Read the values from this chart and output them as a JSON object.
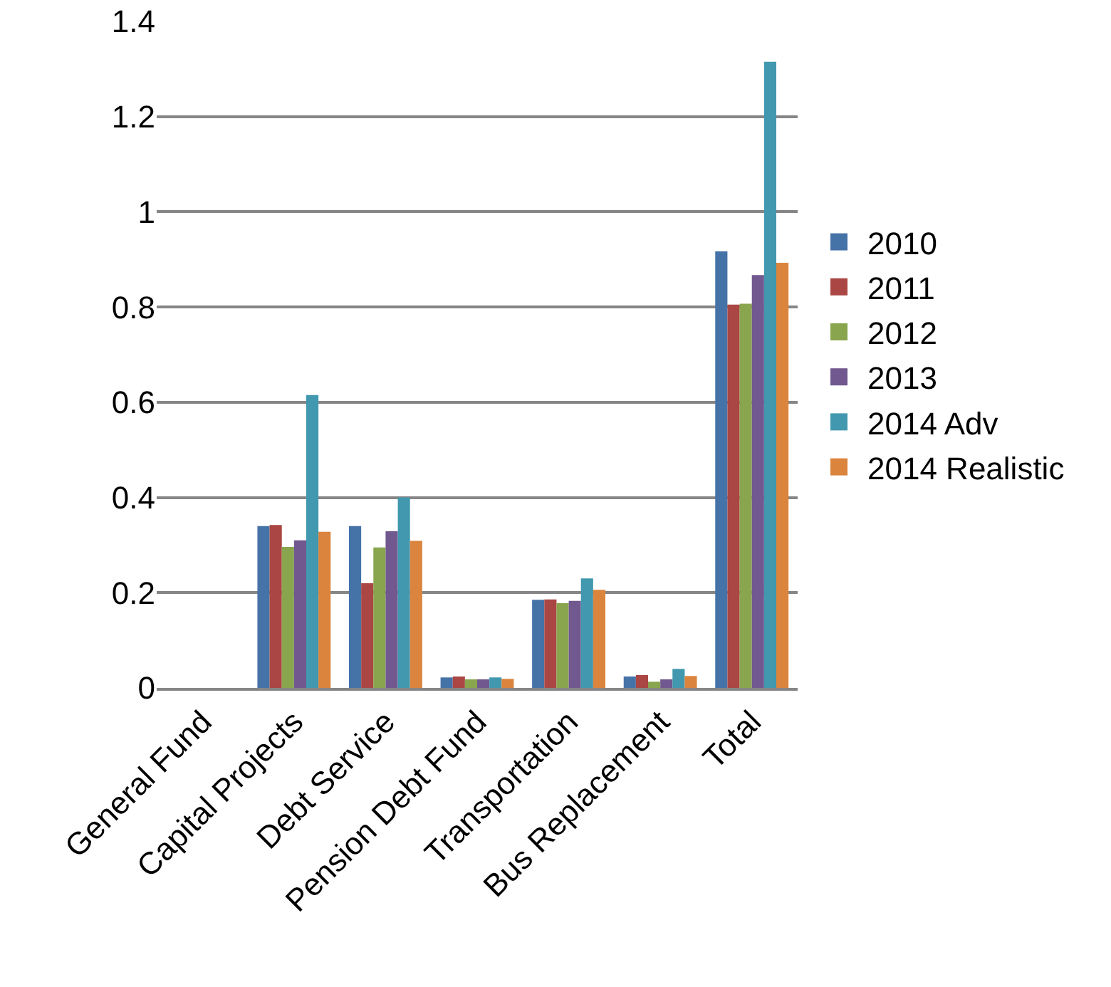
{
  "chart_data": {
    "type": "bar",
    "categories": [
      "General Fund",
      "Capital Projects",
      "Debt Service",
      "Pension Debt Fund",
      "Transportation",
      "Bus Replacement",
      "Total"
    ],
    "series": [
      {
        "name": "2010",
        "color": "#4572a7",
        "values": [
          0,
          0.34,
          0.34,
          0.022,
          0.185,
          0.024,
          0.917
        ]
      },
      {
        "name": "2011",
        "color": "#aa4643",
        "values": [
          0,
          0.342,
          0.22,
          0.024,
          0.186,
          0.027,
          0.805
        ]
      },
      {
        "name": "2012",
        "color": "#89a54e",
        "values": [
          0,
          0.296,
          0.295,
          0.018,
          0.178,
          0.013,
          0.807
        ]
      },
      {
        "name": "2013",
        "color": "#71588f",
        "values": [
          0,
          0.31,
          0.329,
          0.018,
          0.183,
          0.018,
          0.867
        ]
      },
      {
        "name": "2014 Adv",
        "color": "#4198af",
        "values": [
          0,
          0.615,
          0.4,
          0.022,
          0.23,
          0.04,
          1.315
        ]
      },
      {
        "name": "2014 Realistic",
        "color": "#db843d",
        "values": [
          0,
          0.328,
          0.309,
          0.019,
          0.206,
          0.025,
          0.893
        ]
      }
    ],
    "ylim": [
      0,
      1.4
    ],
    "yticks": [
      0,
      0.2,
      0.4,
      0.6,
      0.8,
      1,
      1.2,
      1.4
    ],
    "grid": "y",
    "legend": "right"
  }
}
